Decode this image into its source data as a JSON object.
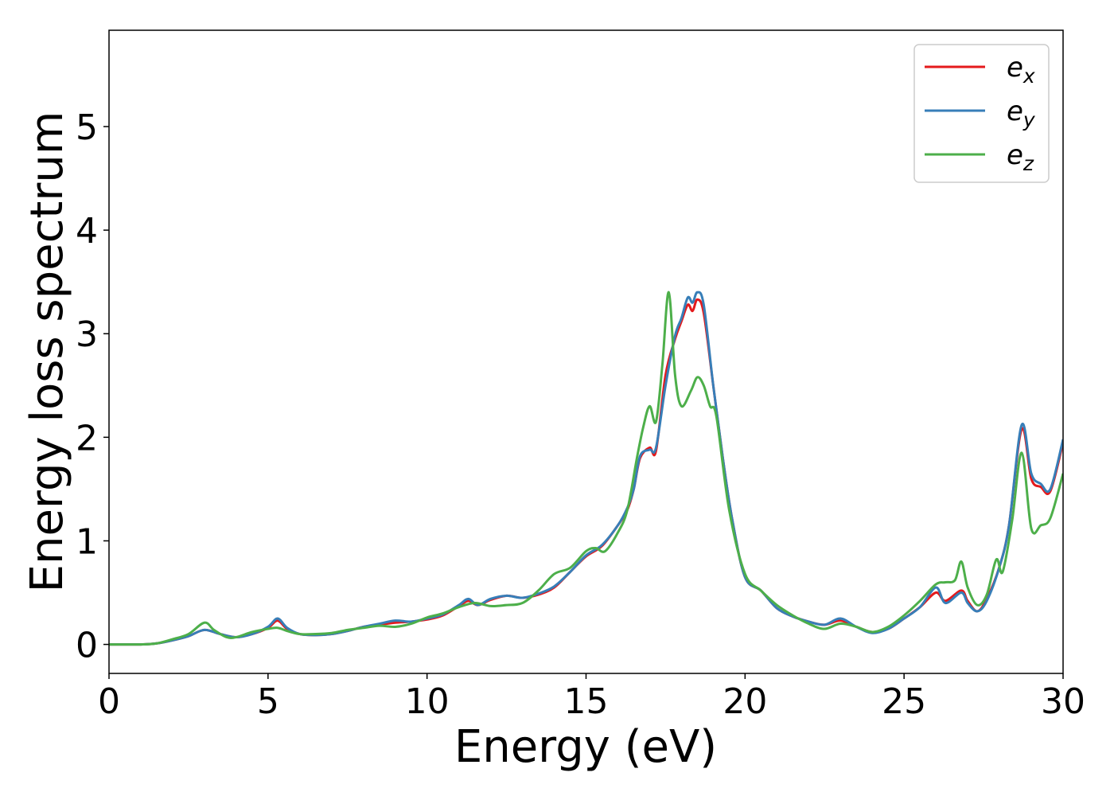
{
  "chart_data": {
    "type": "line",
    "title": "",
    "xlabel": "Energy (eV)",
    "ylabel": "Energy loss spectrum",
    "xlim": [
      0,
      30
    ],
    "ylim": [
      -0.28,
      5.93
    ],
    "xticks": [
      0,
      5,
      10,
      15,
      20,
      25,
      30
    ],
    "yticks": [
      0,
      1,
      2,
      3,
      4,
      5
    ],
    "grid": false,
    "legend_position": "top-right",
    "series": [
      {
        "name": "e",
        "subscript": "x",
        "color": "#e41a1c",
        "points": [
          [
            0,
            0
          ],
          [
            1,
            0
          ],
          [
            1.5,
            0.01
          ],
          [
            2,
            0.04
          ],
          [
            2.5,
            0.08
          ],
          [
            3,
            0.14
          ],
          [
            3.5,
            0.1
          ],
          [
            4,
            0.07
          ],
          [
            4.5,
            0.1
          ],
          [
            5,
            0.16
          ],
          [
            5.3,
            0.23
          ],
          [
            5.6,
            0.15
          ],
          [
            6,
            0.1
          ],
          [
            6.5,
            0.09
          ],
          [
            7,
            0.1
          ],
          [
            7.5,
            0.13
          ],
          [
            8,
            0.17
          ],
          [
            8.5,
            0.19
          ],
          [
            9,
            0.21
          ],
          [
            9.5,
            0.22
          ],
          [
            10,
            0.24
          ],
          [
            10.5,
            0.28
          ],
          [
            11,
            0.37
          ],
          [
            11.3,
            0.42
          ],
          [
            11.6,
            0.38
          ],
          [
            12,
            0.43
          ],
          [
            12.5,
            0.47
          ],
          [
            13,
            0.45
          ],
          [
            13.5,
            0.48
          ],
          [
            14,
            0.55
          ],
          [
            14.5,
            0.7
          ],
          [
            15,
            0.85
          ],
          [
            15.5,
            0.95
          ],
          [
            16,
            1.15
          ],
          [
            16.3,
            1.3
          ],
          [
            16.5,
            1.5
          ],
          [
            16.7,
            1.8
          ],
          [
            17,
            1.9
          ],
          [
            17.2,
            1.87
          ],
          [
            17.5,
            2.6
          ],
          [
            17.8,
            2.95
          ],
          [
            18,
            3.12
          ],
          [
            18.2,
            3.28
          ],
          [
            18.35,
            3.22
          ],
          [
            18.5,
            3.33
          ],
          [
            18.7,
            3.2
          ],
          [
            19,
            2.5
          ],
          [
            19.3,
            1.8
          ],
          [
            19.6,
            1.2
          ],
          [
            20,
            0.65
          ],
          [
            20.5,
            0.52
          ],
          [
            21,
            0.35
          ],
          [
            21.5,
            0.27
          ],
          [
            22,
            0.22
          ],
          [
            22.5,
            0.19
          ],
          [
            23,
            0.23
          ],
          [
            23.5,
            0.17
          ],
          [
            24,
            0.12
          ],
          [
            24.5,
            0.15
          ],
          [
            25,
            0.25
          ],
          [
            25.5,
            0.36
          ],
          [
            26,
            0.5
          ],
          [
            26.3,
            0.42
          ],
          [
            26.8,
            0.52
          ],
          [
            27,
            0.42
          ],
          [
            27.3,
            0.32
          ],
          [
            27.6,
            0.44
          ],
          [
            28,
            0.75
          ],
          [
            28.3,
            1.15
          ],
          [
            28.7,
            2.08
          ],
          [
            29,
            1.6
          ],
          [
            29.3,
            1.52
          ],
          [
            29.6,
            1.48
          ],
          [
            30,
            1.95
          ]
        ]
      },
      {
        "name": "e",
        "subscript": "y",
        "color": "#377eb8",
        "points": [
          [
            0,
            0
          ],
          [
            1,
            0
          ],
          [
            1.5,
            0.01
          ],
          [
            2,
            0.04
          ],
          [
            2.5,
            0.08
          ],
          [
            3,
            0.14
          ],
          [
            3.5,
            0.1
          ],
          [
            4,
            0.07
          ],
          [
            4.5,
            0.1
          ],
          [
            5,
            0.17
          ],
          [
            5.3,
            0.25
          ],
          [
            5.6,
            0.16
          ],
          [
            6,
            0.1
          ],
          [
            6.5,
            0.09
          ],
          [
            7,
            0.1
          ],
          [
            7.5,
            0.13
          ],
          [
            8,
            0.17
          ],
          [
            8.5,
            0.2
          ],
          [
            9,
            0.23
          ],
          [
            9.5,
            0.22
          ],
          [
            10,
            0.25
          ],
          [
            10.5,
            0.29
          ],
          [
            11,
            0.38
          ],
          [
            11.3,
            0.44
          ],
          [
            11.6,
            0.38
          ],
          [
            12,
            0.44
          ],
          [
            12.5,
            0.47
          ],
          [
            13,
            0.45
          ],
          [
            13.5,
            0.49
          ],
          [
            14,
            0.56
          ],
          [
            14.5,
            0.7
          ],
          [
            15,
            0.86
          ],
          [
            15.5,
            0.96
          ],
          [
            16,
            1.15
          ],
          [
            16.3,
            1.32
          ],
          [
            16.5,
            1.5
          ],
          [
            16.7,
            1.82
          ],
          [
            17,
            1.88
          ],
          [
            17.2,
            1.9
          ],
          [
            17.5,
            2.5
          ],
          [
            17.8,
            2.98
          ],
          [
            18,
            3.15
          ],
          [
            18.2,
            3.35
          ],
          [
            18.35,
            3.3
          ],
          [
            18.5,
            3.4
          ],
          [
            18.7,
            3.28
          ],
          [
            19,
            2.5
          ],
          [
            19.3,
            1.8
          ],
          [
            19.6,
            1.2
          ],
          [
            20,
            0.65
          ],
          [
            20.5,
            0.52
          ],
          [
            21,
            0.35
          ],
          [
            21.5,
            0.27
          ],
          [
            22,
            0.22
          ],
          [
            22.5,
            0.19
          ],
          [
            23,
            0.25
          ],
          [
            23.5,
            0.17
          ],
          [
            24,
            0.11
          ],
          [
            24.5,
            0.15
          ],
          [
            25,
            0.25
          ],
          [
            25.5,
            0.36
          ],
          [
            26,
            0.55
          ],
          [
            26.3,
            0.4
          ],
          [
            26.8,
            0.5
          ],
          [
            27,
            0.4
          ],
          [
            27.3,
            0.32
          ],
          [
            27.6,
            0.42
          ],
          [
            28,
            0.75
          ],
          [
            28.3,
            1.15
          ],
          [
            28.7,
            2.12
          ],
          [
            29,
            1.65
          ],
          [
            29.3,
            1.55
          ],
          [
            29.6,
            1.5
          ],
          [
            30,
            1.98
          ]
        ]
      },
      {
        "name": "e",
        "subscript": "z",
        "color": "#4daf4a",
        "points": [
          [
            0,
            0
          ],
          [
            1,
            0
          ],
          [
            1.5,
            0.01
          ],
          [
            2,
            0.05
          ],
          [
            2.5,
            0.1
          ],
          [
            3,
            0.21
          ],
          [
            3.3,
            0.14
          ],
          [
            3.7,
            0.07
          ],
          [
            4,
            0.07
          ],
          [
            4.5,
            0.12
          ],
          [
            5,
            0.15
          ],
          [
            5.3,
            0.16
          ],
          [
            5.6,
            0.13
          ],
          [
            6,
            0.1
          ],
          [
            6.5,
            0.1
          ],
          [
            7,
            0.11
          ],
          [
            7.5,
            0.14
          ],
          [
            8,
            0.16
          ],
          [
            8.5,
            0.18
          ],
          [
            9,
            0.17
          ],
          [
            9.5,
            0.2
          ],
          [
            10,
            0.26
          ],
          [
            10.5,
            0.3
          ],
          [
            11,
            0.36
          ],
          [
            11.5,
            0.4
          ],
          [
            12,
            0.37
          ],
          [
            12.5,
            0.38
          ],
          [
            13,
            0.4
          ],
          [
            13.5,
            0.52
          ],
          [
            14,
            0.68
          ],
          [
            14.5,
            0.74
          ],
          [
            15,
            0.9
          ],
          [
            15.3,
            0.93
          ],
          [
            15.6,
            0.9
          ],
          [
            16,
            1.08
          ],
          [
            16.3,
            1.3
          ],
          [
            16.6,
            1.8
          ],
          [
            16.8,
            2.1
          ],
          [
            17,
            2.3
          ],
          [
            17.2,
            2.15
          ],
          [
            17.4,
            2.7
          ],
          [
            17.6,
            3.4
          ],
          [
            17.8,
            2.6
          ],
          [
            18,
            2.3
          ],
          [
            18.3,
            2.45
          ],
          [
            18.5,
            2.58
          ],
          [
            18.7,
            2.5
          ],
          [
            18.9,
            2.3
          ],
          [
            19.1,
            2.2
          ],
          [
            19.5,
            1.3
          ],
          [
            20,
            0.68
          ],
          [
            20.5,
            0.52
          ],
          [
            21,
            0.38
          ],
          [
            21.5,
            0.28
          ],
          [
            22,
            0.2
          ],
          [
            22.5,
            0.15
          ],
          [
            23,
            0.2
          ],
          [
            23.5,
            0.17
          ],
          [
            24,
            0.12
          ],
          [
            24.5,
            0.17
          ],
          [
            25,
            0.28
          ],
          [
            25.5,
            0.42
          ],
          [
            26,
            0.58
          ],
          [
            26.3,
            0.6
          ],
          [
            26.6,
            0.62
          ],
          [
            26.8,
            0.8
          ],
          [
            27,
            0.55
          ],
          [
            27.3,
            0.38
          ],
          [
            27.6,
            0.48
          ],
          [
            27.9,
            0.82
          ],
          [
            28.1,
            0.7
          ],
          [
            28.4,
            1.2
          ],
          [
            28.7,
            1.85
          ],
          [
            29,
            1.12
          ],
          [
            29.3,
            1.15
          ],
          [
            29.6,
            1.22
          ],
          [
            30,
            1.65
          ]
        ]
      }
    ]
  }
}
